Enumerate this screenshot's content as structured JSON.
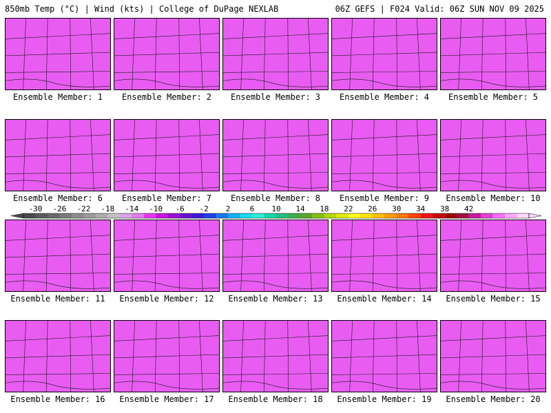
{
  "header": {
    "left": "850mb Temp (°C) | Wind (kts) | College of DuPage NEXLAB",
    "right": "06Z GEFS | F024 Valid: 06Z SUN NOV 09 2025"
  },
  "panels": [
    {
      "label": "Ensemble Member: 1"
    },
    {
      "label": "Ensemble Member: 2"
    },
    {
      "label": "Ensemble Member: 3"
    },
    {
      "label": "Ensemble Member: 4"
    },
    {
      "label": "Ensemble Member: 5"
    },
    {
      "label": "Ensemble Member: 6"
    },
    {
      "label": "Ensemble Member: 7"
    },
    {
      "label": "Ensemble Member: 8"
    },
    {
      "label": "Ensemble Member: 9"
    },
    {
      "label": "Ensemble Member: 10"
    },
    {
      "label": "Ensemble Member: 11"
    },
    {
      "label": "Ensemble Member: 12"
    },
    {
      "label": "Ensemble Member: 13"
    },
    {
      "label": "Ensemble Member: 14"
    },
    {
      "label": "Ensemble Member: 15"
    },
    {
      "label": "Ensemble Member: 16"
    },
    {
      "label": "Ensemble Member: 17"
    },
    {
      "label": "Ensemble Member: 18"
    },
    {
      "label": "Ensemble Member: 19"
    },
    {
      "label": "Ensemble Member: 20"
    }
  ],
  "colorbar": {
    "ticks": [
      "-30",
      "-26",
      "-22",
      "-18",
      "-14",
      "-10",
      "-6",
      "-2",
      "2",
      "6",
      "10",
      "14",
      "18",
      "22",
      "26",
      "30",
      "34",
      "38",
      "42"
    ],
    "colors": [
      "#4a4a4a",
      "#5a5a5a",
      "#6a6a6a",
      "#7a7a7a",
      "#8b8b8b",
      "#9b9b9b",
      "#aeaeae",
      "#c2c2c2",
      "#d9a6e6",
      "#e07fe9",
      "#e838f0",
      "#c814e0",
      "#9a10d8",
      "#6a10d0",
      "#3a1ad8",
      "#2040e8",
      "#1a78f0",
      "#10b0f6",
      "#16dcf2",
      "#2aeed8",
      "#16d6a8",
      "#22c07e",
      "#3cae4e",
      "#5aa62c",
      "#86c212",
      "#b2d80a",
      "#e0ea10",
      "#ffff20",
      "#ffe200",
      "#ffc000",
      "#ff9c00",
      "#ff7600",
      "#ff4400",
      "#f01414",
      "#c80808",
      "#a00000",
      "#a01040",
      "#c81aa0",
      "#e840d8",
      "#ff70ff",
      "#ffa8ff",
      "#ffd8ff"
    ]
  }
}
